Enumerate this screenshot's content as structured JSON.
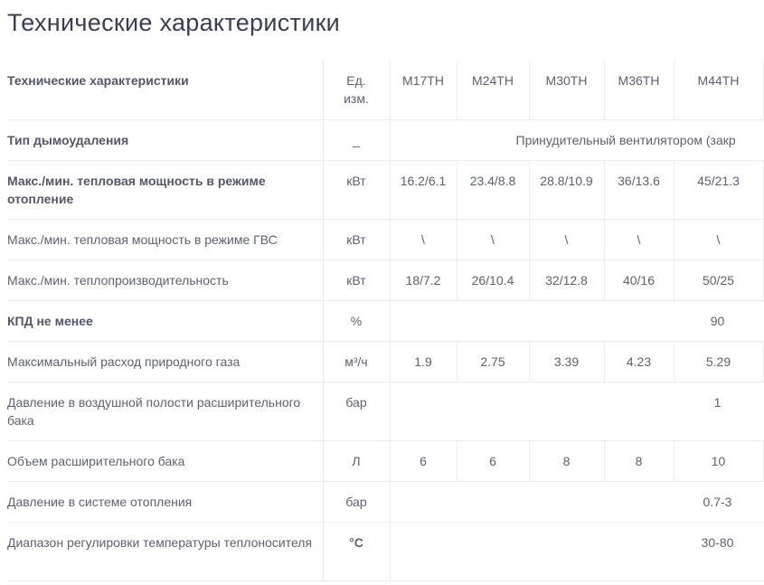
{
  "page": {
    "title": "Технические характеристики"
  },
  "table": {
    "header": {
      "param": "Технические характеристики",
      "unit": "Ед. изм.",
      "models": [
        "M17TH",
        "M24TH",
        "M30TH",
        "M36TH",
        "M44TH"
      ]
    },
    "rows": [
      {
        "label": "Тип дымоудаления",
        "unit": "_",
        "span": "Принудительный вентилятором (закр"
      },
      {
        "label": "Макс./мин. тепловая мощность в режиме отопление",
        "unit": "кВт",
        "values": [
          "16.2/6.1",
          "23.4/8.8",
          "28.8/10.9",
          "36/13.6",
          "45/21.3"
        ]
      },
      {
        "label": "Макс./мин. тепловая мощность в режиме ГВС",
        "unit": "кВт",
        "values": [
          "\\",
          "\\",
          "\\",
          "\\",
          "\\"
        ]
      },
      {
        "label": "Макс./мин. теплопроизводительность",
        "unit": "кВт",
        "values": [
          "18/7.2",
          "26/10.4",
          "32/12.8",
          "40/16",
          "50/25"
        ]
      },
      {
        "label": "КПД не менее",
        "unit": "%",
        "span": "90"
      },
      {
        "label": "Максимальный расход природного газа",
        "unit": "м³/ч",
        "values": [
          "1.9",
          "2.75",
          "3.39",
          "4.23",
          "5.29"
        ]
      },
      {
        "label": "Давление в воздушной полости расширительного бака",
        "unit": "бар",
        "span": "1"
      },
      {
        "label": "Объем расширительного бака",
        "unit": "Л",
        "values": [
          "6",
          "6",
          "8",
          "8",
          "10"
        ]
      },
      {
        "label": "Давление в системе отопления",
        "unit": "бар",
        "span": "0.7-3"
      },
      {
        "label": "Диапазон регулировки температуры теплоносителя",
        "unit": "°C",
        "span": "30-80"
      }
    ]
  }
}
